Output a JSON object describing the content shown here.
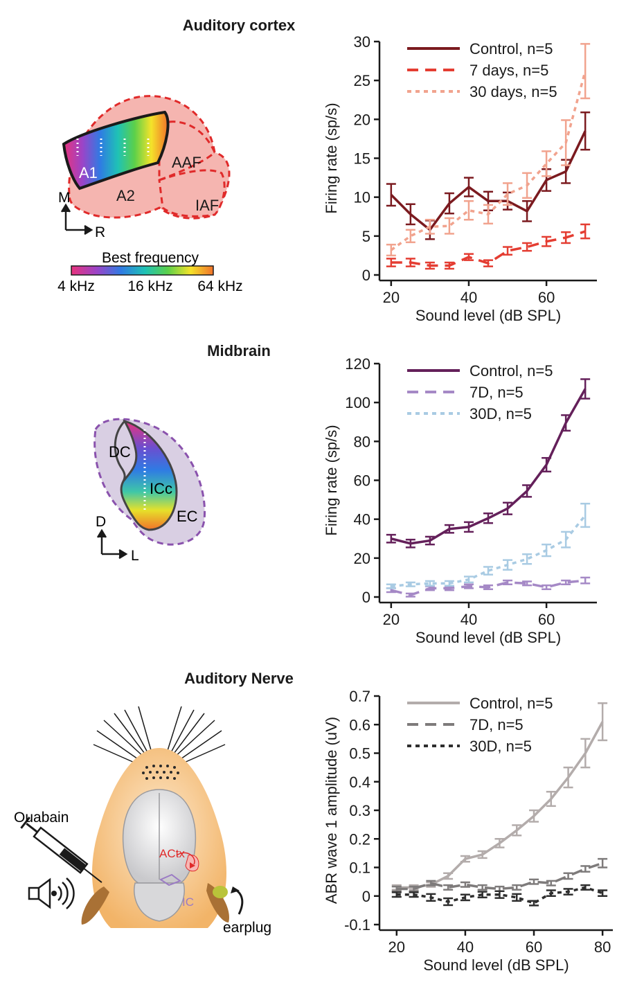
{
  "panels": {
    "cortex": {
      "title": "Auditory cortex",
      "labels": {
        "a1": "A1",
        "a2": "A2",
        "aaf": "AAF",
        "iaf": "IAF",
        "axis_m": "M",
        "axis_r": "R"
      },
      "colorbar": {
        "title": "Best frequency",
        "ticks": [
          "4 kHz",
          "16 kHz",
          "64 kHz"
        ]
      }
    },
    "midbrain": {
      "title": "Midbrain",
      "labels": {
        "dc": "DC",
        "icc": "ICc",
        "ec": "EC",
        "axis_d": "D",
        "axis_l": "L"
      }
    },
    "nerve": {
      "title": "Auditory Nerve",
      "labels": {
        "ouabain": "Ouabain",
        "actx": "ACtx",
        "ic": "IC",
        "earplug": "earplug"
      }
    }
  },
  "chart_data": [
    {
      "type": "line",
      "xlabel": "Sound level (dB SPL)",
      "ylabel": "Firing rate (sp/s)",
      "xlim": [
        17,
        73
      ],
      "ylim": [
        0,
        30
      ],
      "xticks": [
        20,
        40,
        60
      ],
      "yticks": [
        0,
        5,
        10,
        15,
        20,
        25,
        30
      ],
      "legend": "top-left",
      "x": [
        20,
        25,
        30,
        35,
        40,
        45,
        50,
        55,
        60,
        65,
        70
      ],
      "series": [
        {
          "name": "Control, n=5",
          "color": "#7b1a1f",
          "dash": "solid",
          "values": [
            10.3,
            7.8,
            5.8,
            9.2,
            11.3,
            9.5,
            9.5,
            8.2,
            12.2,
            13.3,
            18.5
          ],
          "err": [
            1.4,
            1.3,
            1.2,
            1.3,
            1.2,
            1.2,
            1.1,
            1.3,
            1.4,
            1.5,
            2.4
          ]
        },
        {
          "name": "7 days, n=5",
          "color": "#e43d32",
          "dash": "long",
          "values": [
            1.6,
            1.6,
            1.2,
            1.2,
            2.3,
            1.5,
            3.1,
            3.6,
            4.3,
            4.8,
            5.6
          ],
          "err": [
            0.5,
            0.5,
            0.4,
            0.4,
            0.4,
            0.4,
            0.5,
            0.5,
            0.6,
            0.7,
            0.9
          ]
        },
        {
          "name": "30 days, n=5",
          "color": "#f1a38e",
          "dash": "short",
          "values": [
            3.2,
            5.0,
            6.2,
            6.3,
            8.3,
            7.8,
            10.4,
            11.5,
            14.3,
            17.0,
            26.2
          ],
          "err": [
            0.7,
            0.8,
            0.9,
            1.0,
            1.2,
            1.2,
            1.4,
            1.6,
            1.6,
            2.9,
            3.5
          ]
        }
      ]
    },
    {
      "type": "line",
      "xlabel": "Sound level (dB SPL)",
      "ylabel": "Firing rate (sp/s)",
      "xlim": [
        17,
        73
      ],
      "ylim": [
        0,
        120
      ],
      "xticks": [
        20,
        40,
        60
      ],
      "yticks": [
        0,
        20,
        40,
        60,
        80,
        100,
        120
      ],
      "legend": "top-left",
      "x": [
        20,
        25,
        30,
        35,
        40,
        45,
        50,
        55,
        60,
        65,
        70
      ],
      "series": [
        {
          "name": "Control, n=5",
          "color": "#64205a",
          "dash": "solid",
          "values": [
            30,
            27.5,
            29,
            35,
            36,
            40.5,
            45.5,
            54.5,
            68,
            89.5,
            107
          ],
          "err": [
            2,
            2,
            2,
            2,
            2.5,
            2.5,
            3,
            3,
            3.5,
            4,
            5
          ]
        },
        {
          "name": "7D, n=5",
          "color": "#a589c6",
          "dash": "long",
          "values": [
            3.5,
            1,
            4.5,
            4.5,
            5.5,
            5,
            7.5,
            7,
            5,
            7.5,
            8.5
          ],
          "err": [
            1,
            0.8,
            1,
            1,
            1,
            1,
            1,
            1,
            1,
            1,
            1.5
          ]
        },
        {
          "name": "30D, n=5",
          "color": "#a9cbe3",
          "dash": "short",
          "values": [
            5.5,
            6.5,
            7,
            7,
            9,
            13.5,
            16.5,
            19.5,
            24,
            29.5,
            42
          ],
          "err": [
            1,
            1,
            1.2,
            1.2,
            1.5,
            2,
            2.5,
            2.5,
            3,
            4,
            6
          ]
        }
      ]
    },
    {
      "type": "line",
      "xlabel": "Sound level (dB SPL)",
      "ylabel": "ABR wave 1 amplitude (uV)",
      "xlim": [
        15,
        83
      ],
      "ylim": [
        -0.1,
        0.7
      ],
      "xticks": [
        20,
        40,
        60,
        80
      ],
      "yticks": [
        -0.1,
        0,
        0.1,
        0.2,
        0.3,
        0.4,
        0.5,
        0.6,
        0.7
      ],
      "legend": "top-left",
      "x": [
        20,
        25,
        30,
        35,
        40,
        45,
        50,
        55,
        60,
        65,
        70,
        75,
        80
      ],
      "series": [
        {
          "name": "Control, n=5",
          "color": "#b3acab",
          "dash": "solid",
          "values": [
            0.03,
            0.03,
            0.04,
            0.07,
            0.13,
            0.145,
            0.185,
            0.23,
            0.28,
            0.34,
            0.415,
            0.5,
            0.61
          ],
          "err": [
            0.008,
            0.008,
            0.008,
            0.01,
            0.01,
            0.012,
            0.015,
            0.018,
            0.02,
            0.025,
            0.035,
            0.05,
            0.065
          ]
        },
        {
          "name": "7D, n=5",
          "color": "#7e7b7b",
          "dash": "long",
          "values": [
            0.025,
            0.025,
            0.045,
            0.03,
            0.04,
            0.03,
            0.025,
            0.03,
            0.05,
            0.045,
            0.07,
            0.095,
            0.115
          ],
          "err": [
            0.008,
            0.008,
            0.008,
            0.008,
            0.008,
            0.008,
            0.008,
            0.008,
            0.008,
            0.008,
            0.01,
            0.01,
            0.015
          ]
        },
        {
          "name": "30D, n=5",
          "color": "#2e2e2e",
          "dash": "short",
          "values": [
            0.005,
            0.005,
            -0.005,
            -0.02,
            -0.005,
            0.005,
            0.005,
            -0.005,
            -0.025,
            0.01,
            0.015,
            0.03,
            0.01
          ],
          "err": [
            0.008,
            0.008,
            0.012,
            0.012,
            0.01,
            0.01,
            0.012,
            0.012,
            0.008,
            0.01,
            0.01,
            0.008,
            0.01
          ]
        }
      ]
    }
  ]
}
